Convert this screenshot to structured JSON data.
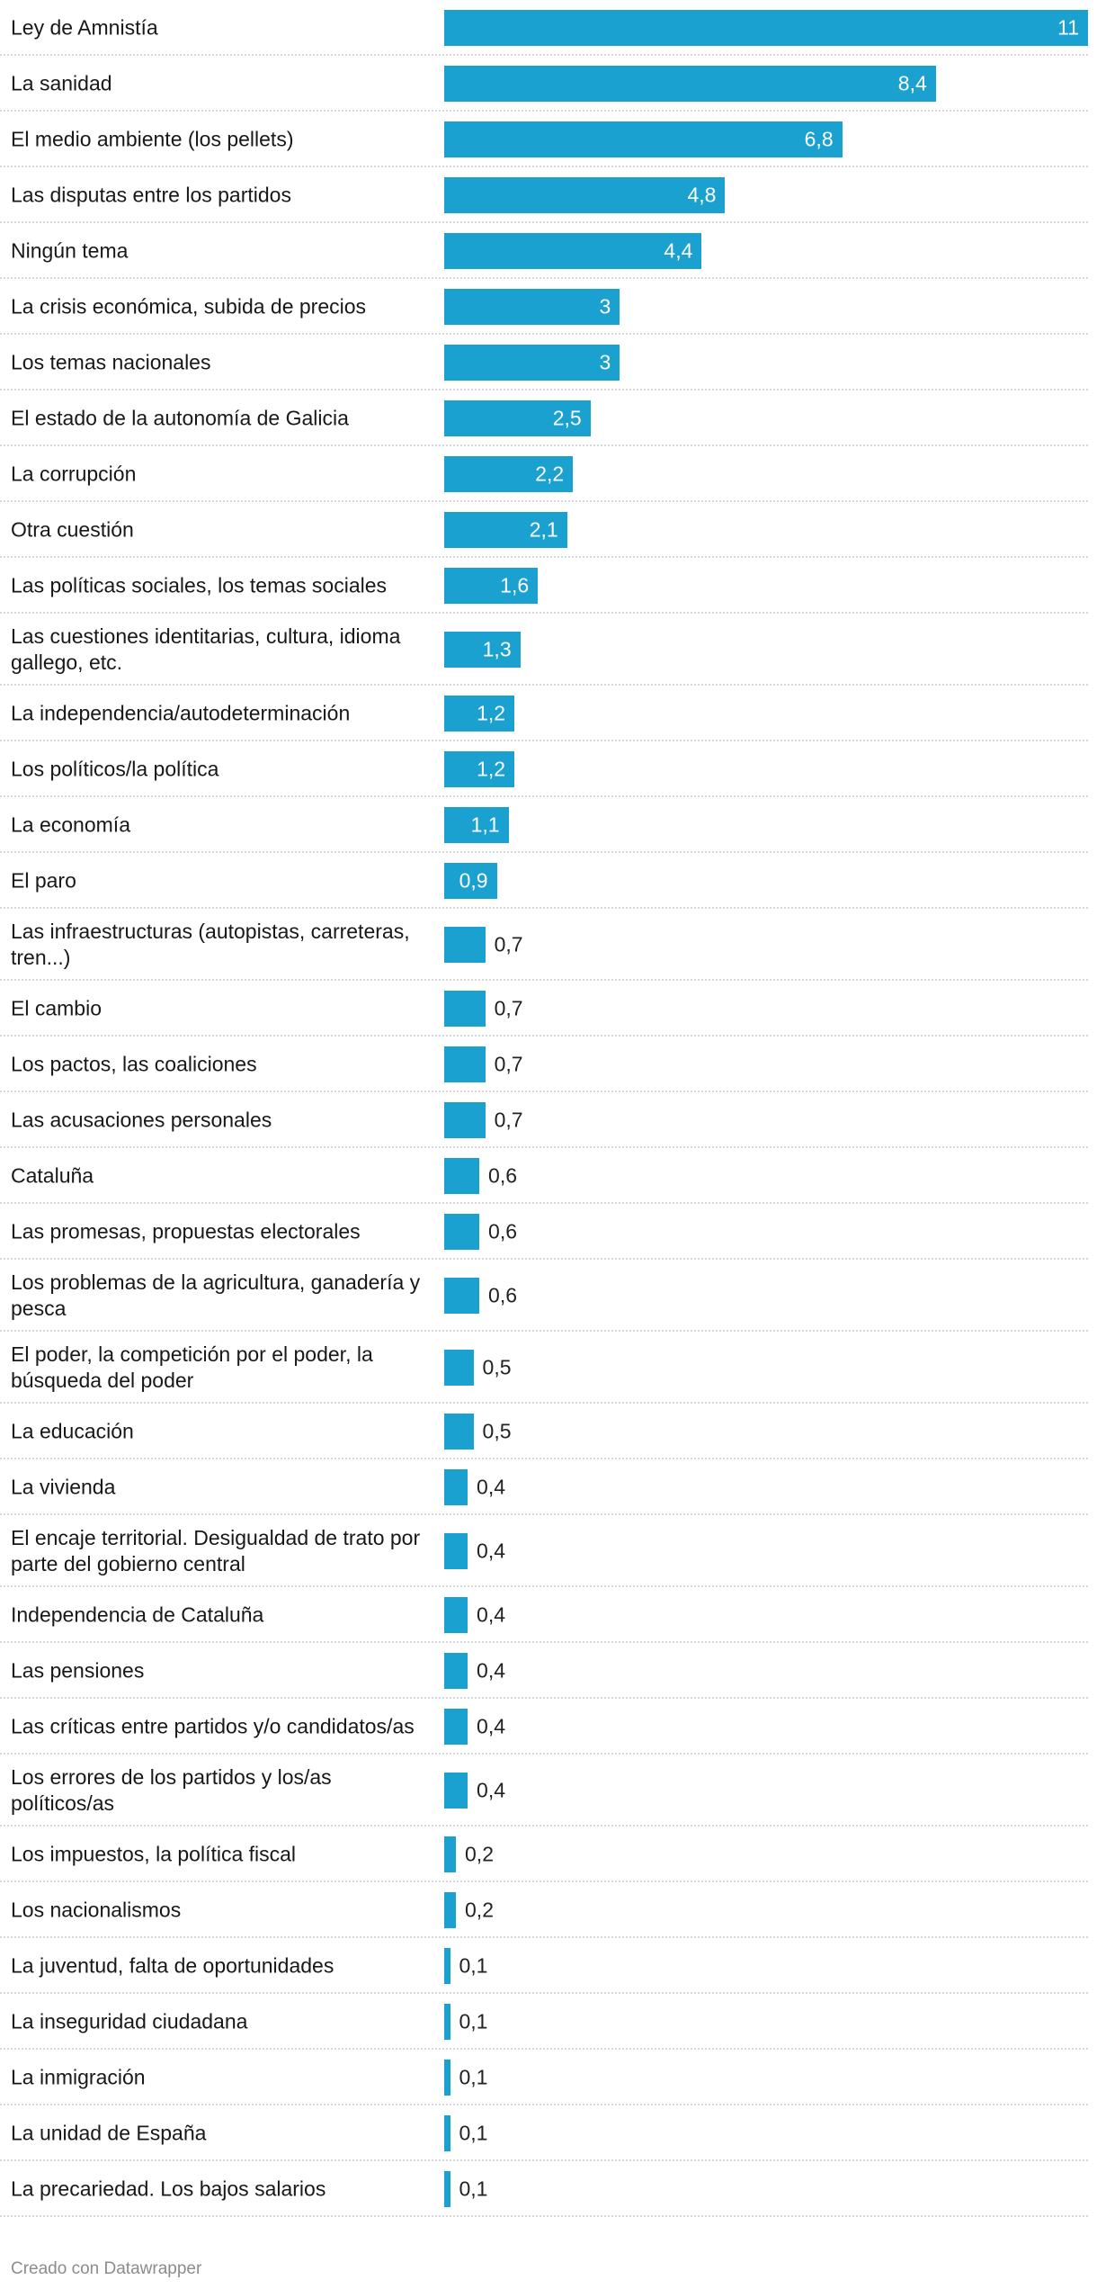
{
  "chart_data": {
    "type": "bar",
    "orientation": "horizontal",
    "color": "#1aa1d0",
    "xlim": [
      0,
      11
    ],
    "categories": [
      "Ley de Amnistía",
      "La sanidad",
      "El medio ambiente (los pellets)",
      "Las disputas entre los partidos",
      "Ningún tema",
      "La crisis económica, subida de precios",
      "Los temas nacionales",
      "El estado de la autonomía de Galicia",
      "La corrupción",
      "Otra cuestión",
      "Las políticas sociales, los temas sociales",
      "Las cuestiones identitarias, cultura, idioma gallego, etc.",
      "La independencia/autodeterminación",
      "Los políticos/la política",
      "La economía",
      "El paro",
      "Las infraestructuras (autopistas, carreteras, tren...)",
      "El cambio",
      "Los pactos, las coaliciones",
      "Las acusaciones personales",
      "Cataluña",
      "Las promesas, propuestas electorales",
      "Los problemas de la agricultura, ganadería y pesca",
      "El poder, la competición por el poder, la búsqueda del poder",
      "La educación",
      "La vivienda",
      "El encaje territorial. Desigualdad de trato por parte del gobierno central",
      "Independencia de Cataluña",
      "Las pensiones",
      "Las críticas entre partidos y/o candidatos/as",
      "Los errores de los partidos y los/as políticos/as",
      "Los impuestos, la política fiscal",
      "Los nacionalismos",
      "La juventud, falta de oportunidades",
      "La inseguridad ciudadana",
      "La inmigración",
      "La unidad de España",
      "La precariedad. Los bajos salarios"
    ],
    "values": [
      11,
      8.4,
      6.8,
      4.8,
      4.4,
      3,
      3,
      2.5,
      2.2,
      2.1,
      1.6,
      1.3,
      1.2,
      1.2,
      1.1,
      0.9,
      0.7,
      0.7,
      0.7,
      0.7,
      0.6,
      0.6,
      0.6,
      0.5,
      0.5,
      0.4,
      0.4,
      0.4,
      0.4,
      0.4,
      0.4,
      0.2,
      0.2,
      0.1,
      0.1,
      0.1,
      0.1,
      0.1
    ],
    "value_labels": [
      "11",
      "8,4",
      "6,8",
      "4,8",
      "4,4",
      "3",
      "3",
      "2,5",
      "2,2",
      "2,1",
      "1,6",
      "1,3",
      "1,2",
      "1,2",
      "1,1",
      "0,9",
      "0,7",
      "0,7",
      "0,7",
      "0,7",
      "0,6",
      "0,6",
      "0,6",
      "0,5",
      "0,5",
      "0,4",
      "0,4",
      "0,4",
      "0,4",
      "0,4",
      "0,4",
      "0,2",
      "0,2",
      "0,1",
      "0,1",
      "0,1",
      "0,1",
      "0,1"
    ]
  },
  "footer": {
    "credit": "Creado con Datawrapper"
  }
}
